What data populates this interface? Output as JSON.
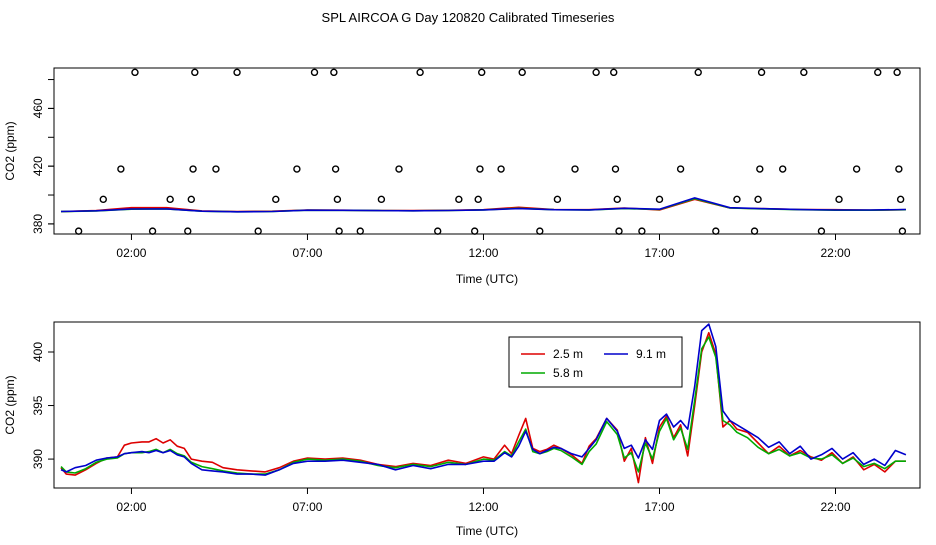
{
  "chart_data": [
    {
      "type": "scatter+line",
      "title": "SPL AIRCOA G  Day 120820  Calibrated Timeseries",
      "xlabel": "Time (UTC)",
      "ylabel": "CO2 (ppm)",
      "x_tick_labels": [
        "02:00",
        "07:00",
        "12:00",
        "17:00",
        "22:00"
      ],
      "x_tick_values": [
        2,
        7,
        12,
        17,
        22
      ],
      "y_tick_values": [
        380,
        420,
        460
      ],
      "y_minor_ticks": [
        380,
        400,
        420,
        440,
        460,
        480
      ],
      "xlim": [
        -0.2,
        24.4
      ],
      "ylim": [
        373,
        488
      ],
      "calibration_points": [
        [
          0.5,
          375
        ],
        [
          1.2,
          397
        ],
        [
          1.7,
          418
        ],
        [
          2.1,
          485
        ],
        [
          2.6,
          375
        ],
        [
          3.1,
          397
        ],
        [
          3.6,
          375
        ],
        [
          3.7,
          397
        ],
        [
          3.75,
          418
        ],
        [
          3.8,
          485
        ],
        [
          4.4,
          418
        ],
        [
          5.0,
          485
        ],
        [
          5.6,
          375
        ],
        [
          6.1,
          397
        ],
        [
          6.7,
          418
        ],
        [
          7.2,
          485
        ],
        [
          7.75,
          485
        ],
        [
          7.8,
          418
        ],
        [
          7.85,
          397
        ],
        [
          7.9,
          375
        ],
        [
          8.5,
          375
        ],
        [
          9.1,
          397
        ],
        [
          9.6,
          418
        ],
        [
          10.2,
          485
        ],
        [
          10.7,
          375
        ],
        [
          11.3,
          397
        ],
        [
          11.75,
          375
        ],
        [
          11.85,
          397
        ],
        [
          11.9,
          418
        ],
        [
          11.95,
          485
        ],
        [
          12.5,
          418
        ],
        [
          13.1,
          485
        ],
        [
          13.6,
          375
        ],
        [
          14.1,
          397
        ],
        [
          14.6,
          418
        ],
        [
          15.2,
          485
        ],
        [
          15.7,
          485
        ],
        [
          15.75,
          418
        ],
        [
          15.8,
          397
        ],
        [
          15.85,
          375
        ],
        [
          16.5,
          375
        ],
        [
          17.0,
          397
        ],
        [
          17.6,
          418
        ],
        [
          18.1,
          485
        ],
        [
          18.6,
          375
        ],
        [
          19.2,
          397
        ],
        [
          19.7,
          375
        ],
        [
          19.8,
          397
        ],
        [
          19.85,
          418
        ],
        [
          19.9,
          485
        ],
        [
          20.5,
          418
        ],
        [
          21.1,
          485
        ],
        [
          21.6,
          375
        ],
        [
          22.1,
          397
        ],
        [
          22.6,
          418
        ],
        [
          23.2,
          485
        ],
        [
          23.75,
          485
        ],
        [
          23.8,
          418
        ],
        [
          23.85,
          397
        ],
        [
          23.9,
          375
        ]
      ],
      "series": [
        {
          "name": "2.5 m",
          "color": "#dd0000",
          "x": [
            0,
            1,
            2,
            3,
            4,
            5,
            6,
            7,
            8,
            9,
            10,
            11,
            12,
            13,
            14,
            15,
            16,
            17,
            18,
            19,
            20,
            21,
            22,
            23,
            24
          ],
          "values": [
            388.5,
            389.2,
            391.2,
            391.2,
            389,
            388.6,
            388.8,
            389.6,
            389.5,
            389.3,
            389.2,
            389.4,
            389.8,
            391.5,
            390,
            389.8,
            391,
            389.6,
            397,
            391,
            390.5,
            390,
            389.8,
            389.5,
            389.8
          ]
        },
        {
          "name": "5.8 m",
          "color": "#00bb00",
          "x": [
            0,
            1,
            2,
            3,
            4,
            5,
            6,
            7,
            8,
            9,
            10,
            11,
            12,
            13,
            14,
            15,
            16,
            17,
            18,
            19,
            20,
            21,
            22,
            23,
            24
          ],
          "values": [
            388.5,
            389.0,
            390.2,
            390.3,
            388.8,
            388.4,
            388.6,
            389.5,
            389.4,
            389.2,
            389.1,
            389.3,
            389.7,
            390.8,
            389.8,
            389.6,
            390.6,
            390,
            397.5,
            391,
            390.3,
            389.8,
            389.5,
            389.5,
            389.8
          ]
        },
        {
          "name": "9.1 m",
          "color": "#0000cc",
          "x": [
            0,
            1,
            2,
            3,
            4,
            5,
            6,
            7,
            8,
            9,
            10,
            11,
            12,
            13,
            14,
            15,
            16,
            17,
            18,
            19,
            20,
            21,
            22,
            23,
            24
          ],
          "values": [
            388.6,
            389.1,
            390.3,
            390.4,
            388.8,
            388.4,
            388.6,
            389.5,
            389.4,
            389.2,
            389.1,
            389.3,
            389.7,
            390.6,
            389.8,
            389.7,
            390.8,
            390.2,
            398,
            391.2,
            390.5,
            389.9,
            389.6,
            389.6,
            390.0
          ]
        }
      ]
    },
    {
      "type": "line",
      "title": "",
      "xlabel": "Time (UTC)",
      "ylabel": "CO2 (ppm)",
      "x_tick_labels": [
        "02:00",
        "07:00",
        "12:00",
        "17:00",
        "22:00"
      ],
      "x_tick_values": [
        2,
        7,
        12,
        17,
        22
      ],
      "y_tick_values": [
        390,
        395,
        400
      ],
      "xlim": [
        -0.2,
        24.4
      ],
      "ylim": [
        387.3,
        402.8
      ],
      "legend_position": "top-right",
      "series": [
        {
          "name": "2.5 m",
          "color": "#dd0000",
          "x": [
            0,
            0.15,
            0.4,
            0.7,
            1.0,
            1.3,
            1.6,
            1.8,
            2.0,
            2.3,
            2.5,
            2.7,
            2.9,
            3.1,
            3.3,
            3.5,
            3.7,
            4.0,
            4.3,
            4.6,
            5.0,
            5.4,
            5.8,
            6.2,
            6.6,
            7.0,
            7.5,
            8.0,
            8.5,
            9.0,
            9.5,
            10.0,
            10.5,
            11.0,
            11.5,
            12.0,
            12.3,
            12.6,
            12.8,
            13.0,
            13.2,
            13.4,
            13.6,
            13.8,
            14.0,
            14.2,
            14.5,
            14.8,
            15.0,
            15.2,
            15.5,
            15.8,
            16.0,
            16.2,
            16.4,
            16.6,
            16.8,
            17.0,
            17.2,
            17.4,
            17.6,
            17.8,
            18.0,
            18.2,
            18.4,
            18.6,
            18.8,
            19.0,
            19.2,
            19.5,
            19.8,
            20.1,
            20.4,
            20.7,
            21.0,
            21.3,
            21.6,
            21.9,
            22.2,
            22.5,
            22.8,
            23.1,
            23.4,
            23.7,
            24.0
          ],
          "values": [
            389.2,
            388.6,
            388.5,
            389,
            389.6,
            390.1,
            390.2,
            391.3,
            391.5,
            391.6,
            391.6,
            391.9,
            391.5,
            391.8,
            391.2,
            391.0,
            390.0,
            389.8,
            389.7,
            389.2,
            389.0,
            388.9,
            388.8,
            389.2,
            389.8,
            390.1,
            390.0,
            390.1,
            389.9,
            389.5,
            389.3,
            389.6,
            389.4,
            389.9,
            389.6,
            390.2,
            390.0,
            391.3,
            390.5,
            392.2,
            393.8,
            391.0,
            390.7,
            390.9,
            391.3,
            391.0,
            390.4,
            389.6,
            391.2,
            391.9,
            393.8,
            392.7,
            389.8,
            391.0,
            387.8,
            392.0,
            389.6,
            393.0,
            394.0,
            392.0,
            393.2,
            390.3,
            395.0,
            400.0,
            401.8,
            399.8,
            393.0,
            393.6,
            392.8,
            392.5,
            391.5,
            390.5,
            391.2,
            390.3,
            390.8,
            390.2,
            389.9,
            390.6,
            389.6,
            390.2,
            389.0,
            389.5,
            388.8,
            389.8,
            389.8
          ]
        },
        {
          "name": "5.8 m",
          "color": "#00aa00",
          "x": [
            0,
            0.15,
            0.4,
            0.7,
            1.0,
            1.3,
            1.6,
            1.8,
            2.0,
            2.3,
            2.5,
            2.7,
            2.9,
            3.1,
            3.3,
            3.5,
            3.7,
            4.0,
            4.3,
            4.6,
            5.0,
            5.4,
            5.8,
            6.2,
            6.6,
            7.0,
            7.5,
            8.0,
            8.5,
            9.0,
            9.5,
            10.0,
            10.5,
            11.0,
            11.5,
            12.0,
            12.3,
            12.6,
            12.8,
            13.0,
            13.2,
            13.4,
            13.6,
            13.8,
            14.0,
            14.2,
            14.5,
            14.8,
            15.0,
            15.2,
            15.5,
            15.8,
            16.0,
            16.2,
            16.4,
            16.6,
            16.8,
            17.0,
            17.2,
            17.4,
            17.6,
            17.8,
            18.0,
            18.2,
            18.4,
            18.6,
            18.8,
            19.0,
            19.2,
            19.5,
            19.8,
            20.1,
            20.4,
            20.7,
            21.0,
            21.3,
            21.6,
            21.9,
            22.2,
            22.5,
            22.8,
            23.1,
            23.4,
            23.7,
            24.0
          ],
          "values": [
            389.3,
            388.8,
            388.7,
            389.1,
            389.7,
            390.0,
            390.1,
            390.5,
            390.6,
            390.6,
            390.7,
            390.9,
            390.6,
            390.9,
            390.5,
            390.3,
            389.7,
            389.3,
            389.1,
            388.9,
            388.7,
            388.6,
            388.6,
            389.0,
            389.7,
            390.0,
            389.9,
            390.0,
            389.8,
            389.4,
            389.2,
            389.5,
            389.3,
            389.7,
            389.5,
            390.0,
            389.9,
            390.7,
            390.3,
            391.6,
            392.8,
            390.7,
            390.5,
            390.7,
            391.0,
            390.8,
            390.2,
            389.5,
            390.7,
            391.4,
            393.5,
            392.3,
            390.1,
            390.6,
            388.8,
            391.5,
            390.0,
            392.6,
            393.8,
            391.8,
            392.9,
            390.9,
            395.5,
            400.3,
            401.4,
            399.5,
            393.6,
            393.2,
            392.5,
            392.0,
            391.1,
            390.5,
            390.9,
            390.3,
            390.6,
            390.1,
            390.0,
            390.4,
            389.6,
            390.1,
            389.3,
            389.6,
            389.1,
            389.8,
            389.8
          ]
        },
        {
          "name": "9.1 m",
          "color": "#0000cc",
          "x": [
            0,
            0.15,
            0.4,
            0.7,
            1.0,
            1.3,
            1.6,
            1.8,
            2.0,
            2.3,
            2.5,
            2.7,
            2.9,
            3.1,
            3.3,
            3.5,
            3.7,
            4.0,
            4.3,
            4.6,
            5.0,
            5.4,
            5.8,
            6.2,
            6.6,
            7.0,
            7.5,
            8.0,
            8.5,
            9.0,
            9.5,
            10.0,
            10.5,
            11.0,
            11.5,
            12.0,
            12.3,
            12.6,
            12.8,
            13.0,
            13.2,
            13.4,
            13.6,
            13.8,
            14.0,
            14.2,
            14.5,
            14.8,
            15.0,
            15.2,
            15.5,
            15.8,
            16.0,
            16.2,
            16.4,
            16.6,
            16.8,
            17.0,
            17.2,
            17.4,
            17.6,
            17.8,
            18.0,
            18.2,
            18.4,
            18.6,
            18.8,
            19.0,
            19.2,
            19.5,
            19.8,
            20.1,
            20.4,
            20.7,
            21.0,
            21.3,
            21.6,
            21.9,
            22.2,
            22.5,
            22.8,
            23.1,
            23.4,
            23.7,
            24.0
          ],
          "values": [
            389.0,
            388.8,
            389.2,
            389.4,
            389.9,
            390.1,
            390.2,
            390.5,
            390.6,
            390.7,
            390.6,
            390.8,
            390.6,
            390.8,
            390.4,
            390.2,
            389.6,
            389.0,
            388.9,
            388.8,
            388.6,
            388.6,
            388.5,
            389.0,
            389.6,
            389.8,
            389.8,
            389.9,
            389.7,
            389.5,
            389.0,
            389.4,
            389.1,
            389.5,
            389.5,
            389.8,
            389.8,
            390.6,
            390.2,
            391.2,
            392.6,
            390.9,
            390.5,
            390.8,
            391.1,
            391.0,
            390.5,
            390.2,
            391.0,
            391.8,
            393.8,
            392.6,
            391.0,
            391.3,
            390.1,
            391.8,
            390.9,
            393.6,
            394.2,
            393.0,
            393.6,
            392.8,
            396.8,
            402.0,
            402.6,
            400.5,
            394.5,
            393.6,
            393.2,
            392.6,
            392.0,
            391.1,
            391.6,
            390.5,
            391.2,
            390.0,
            390.4,
            391.0,
            390.0,
            390.6,
            389.5,
            390.0,
            389.4,
            390.8,
            390.4
          ]
        }
      ]
    }
  ]
}
